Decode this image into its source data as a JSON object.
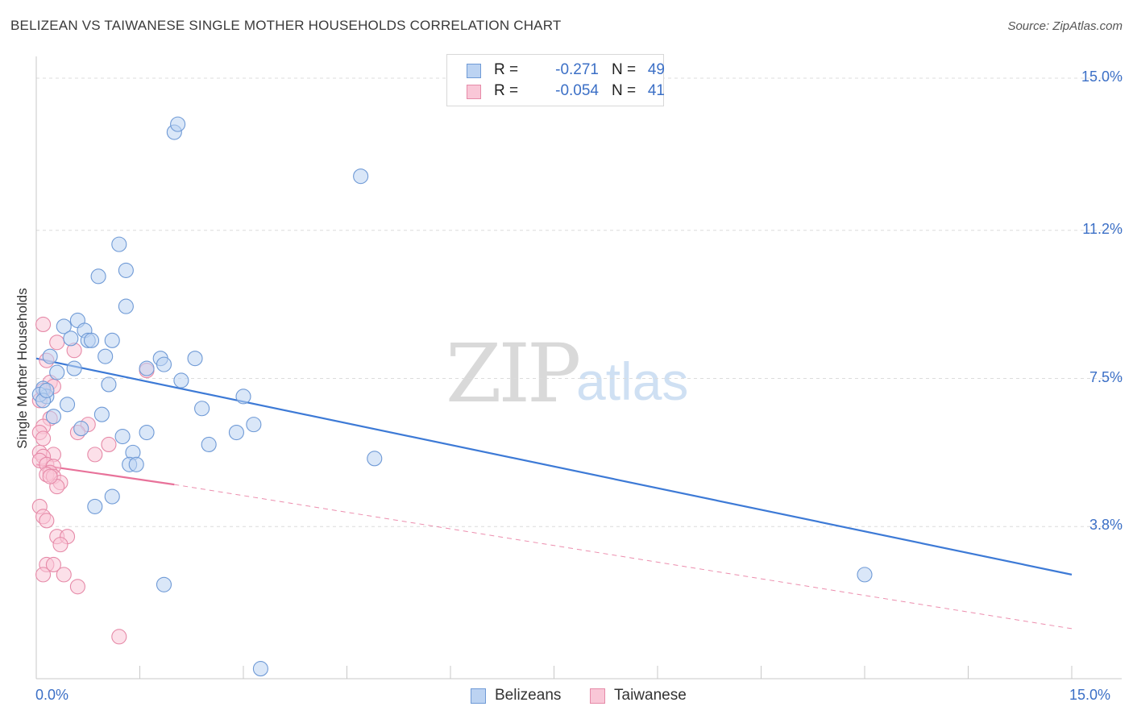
{
  "header": {
    "title": "BELIZEAN VS TAIWANESE SINGLE MOTHER HOUSEHOLDS CORRELATION CHART",
    "source": "Source: ZipAtlas.com"
  },
  "watermark": {
    "zip": "ZIP",
    "atlas": "atlas"
  },
  "legend": {
    "r_label": "R =",
    "n_label": "N =",
    "rows": [
      {
        "r": "-0.271",
        "n": "49",
        "fill": "#bcd3f2",
        "stroke": "#6f9ad6"
      },
      {
        "r": "-0.054",
        "n": "41",
        "fill": "#f9c7d7",
        "stroke": "#e68aa8"
      }
    ]
  },
  "bottom_legend": [
    {
      "label": "Belizeans",
      "fill": "#bcd3f2",
      "stroke": "#6f9ad6"
    },
    {
      "label": "Taiwanese",
      "fill": "#f9c7d7",
      "stroke": "#e68aa8"
    }
  ],
  "chart_data": {
    "type": "scatter",
    "title": "BELIZEAN VS TAIWANESE SINGLE MOTHER HOUSEHOLDS CORRELATION CHART",
    "xlabel": "",
    "ylabel": "Single Mother Households",
    "xlim": [
      0,
      15
    ],
    "ylim": [
      0,
      15.5
    ],
    "x_tick_labels": [
      "0.0%",
      "15.0%"
    ],
    "y_ticks": [
      {
        "value": 3.8,
        "label": "3.8%"
      },
      {
        "value": 7.5,
        "label": "7.5%"
      },
      {
        "value": 11.2,
        "label": "11.2%"
      },
      {
        "value": 15.0,
        "label": "15.0%"
      }
    ],
    "colors": {
      "belizeans": "#3d7ad6",
      "taiwanese": "#e8729a"
    },
    "series": [
      {
        "name": "Belizeans",
        "r": -0.271,
        "n": 49,
        "trend": {
          "x": [
            0,
            15
          ],
          "y": [
            8.0,
            2.6
          ]
        },
        "points": [
          {
            "x": 2.0,
            "y": 13.65
          },
          {
            "x": 2.05,
            "y": 13.85
          },
          {
            "x": 4.7,
            "y": 12.55
          },
          {
            "x": 1.2,
            "y": 10.85
          },
          {
            "x": 0.9,
            "y": 10.05
          },
          {
            "x": 1.3,
            "y": 10.2
          },
          {
            "x": 1.3,
            "y": 9.3
          },
          {
            "x": 0.6,
            "y": 8.95
          },
          {
            "x": 0.4,
            "y": 8.8
          },
          {
            "x": 0.7,
            "y": 8.7
          },
          {
            "x": 0.5,
            "y": 8.5
          },
          {
            "x": 0.75,
            "y": 8.45
          },
          {
            "x": 0.8,
            "y": 8.45
          },
          {
            "x": 1.1,
            "y": 8.45
          },
          {
            "x": 0.2,
            "y": 8.05
          },
          {
            "x": 1.0,
            "y": 8.05
          },
          {
            "x": 1.8,
            "y": 8.0
          },
          {
            "x": 2.3,
            "y": 8.0
          },
          {
            "x": 1.85,
            "y": 7.85
          },
          {
            "x": 1.6,
            "y": 7.75
          },
          {
            "x": 0.55,
            "y": 7.75
          },
          {
            "x": 0.3,
            "y": 7.65
          },
          {
            "x": 1.05,
            "y": 7.35
          },
          {
            "x": 2.1,
            "y": 7.45
          },
          {
            "x": 0.1,
            "y": 7.25
          },
          {
            "x": 0.15,
            "y": 7.05
          },
          {
            "x": 0.05,
            "y": 7.1
          },
          {
            "x": 0.1,
            "y": 6.95
          },
          {
            "x": 0.45,
            "y": 6.85
          },
          {
            "x": 3.0,
            "y": 7.05
          },
          {
            "x": 2.4,
            "y": 6.75
          },
          {
            "x": 0.95,
            "y": 6.6
          },
          {
            "x": 0.25,
            "y": 6.55
          },
          {
            "x": 3.15,
            "y": 6.35
          },
          {
            "x": 0.65,
            "y": 6.25
          },
          {
            "x": 1.6,
            "y": 6.15
          },
          {
            "x": 2.9,
            "y": 6.15
          },
          {
            "x": 1.25,
            "y": 6.05
          },
          {
            "x": 2.5,
            "y": 5.85
          },
          {
            "x": 1.4,
            "y": 5.65
          },
          {
            "x": 4.9,
            "y": 5.5
          },
          {
            "x": 1.35,
            "y": 5.35
          },
          {
            "x": 1.45,
            "y": 5.35
          },
          {
            "x": 1.1,
            "y": 4.55
          },
          {
            "x": 0.85,
            "y": 4.3
          },
          {
            "x": 12.0,
            "y": 2.6
          },
          {
            "x": 1.85,
            "y": 2.35
          },
          {
            "x": 3.25,
            "y": 0.25
          },
          {
            "x": 0.15,
            "y": 7.2
          }
        ]
      },
      {
        "name": "Taiwanese",
        "r": -0.054,
        "n": 41,
        "trend": {
          "x": [
            0,
            2.0
          ],
          "y": [
            5.35,
            4.85
          ]
        },
        "trend_extension": {
          "x": [
            2.0,
            15
          ],
          "y": [
            4.85,
            1.25
          ]
        },
        "points": [
          {
            "x": 0.1,
            "y": 8.85
          },
          {
            "x": 0.3,
            "y": 8.4
          },
          {
            "x": 0.55,
            "y": 8.2
          },
          {
            "x": 0.15,
            "y": 7.95
          },
          {
            "x": 1.6,
            "y": 7.7
          },
          {
            "x": 0.2,
            "y": 7.4
          },
          {
            "x": 0.25,
            "y": 7.3
          },
          {
            "x": 0.1,
            "y": 7.2
          },
          {
            "x": 0.05,
            "y": 6.95
          },
          {
            "x": 0.2,
            "y": 6.5
          },
          {
            "x": 0.75,
            "y": 6.35
          },
          {
            "x": 0.1,
            "y": 6.3
          },
          {
            "x": 0.05,
            "y": 6.15
          },
          {
            "x": 0.6,
            "y": 6.15
          },
          {
            "x": 0.1,
            "y": 6.0
          },
          {
            "x": 1.05,
            "y": 5.85
          },
          {
            "x": 0.05,
            "y": 5.65
          },
          {
            "x": 0.25,
            "y": 5.6
          },
          {
            "x": 0.85,
            "y": 5.6
          },
          {
            "x": 0.1,
            "y": 5.55
          },
          {
            "x": 0.05,
            "y": 5.45
          },
          {
            "x": 0.15,
            "y": 5.35
          },
          {
            "x": 0.25,
            "y": 5.3
          },
          {
            "x": 0.2,
            "y": 5.15
          },
          {
            "x": 0.15,
            "y": 5.1
          },
          {
            "x": 0.25,
            "y": 5.05
          },
          {
            "x": 0.35,
            "y": 4.9
          },
          {
            "x": 0.3,
            "y": 4.8
          },
          {
            "x": 0.05,
            "y": 4.3
          },
          {
            "x": 0.1,
            "y": 4.05
          },
          {
            "x": 0.15,
            "y": 3.95
          },
          {
            "x": 0.3,
            "y": 3.55
          },
          {
            "x": 0.45,
            "y": 3.55
          },
          {
            "x": 0.35,
            "y": 3.35
          },
          {
            "x": 0.15,
            "y": 2.85
          },
          {
            "x": 0.25,
            "y": 2.85
          },
          {
            "x": 0.1,
            "y": 2.6
          },
          {
            "x": 0.4,
            "y": 2.6
          },
          {
            "x": 0.6,
            "y": 2.3
          },
          {
            "x": 1.2,
            "y": 1.05
          },
          {
            "x": 0.2,
            "y": 5.05
          }
        ]
      }
    ]
  }
}
